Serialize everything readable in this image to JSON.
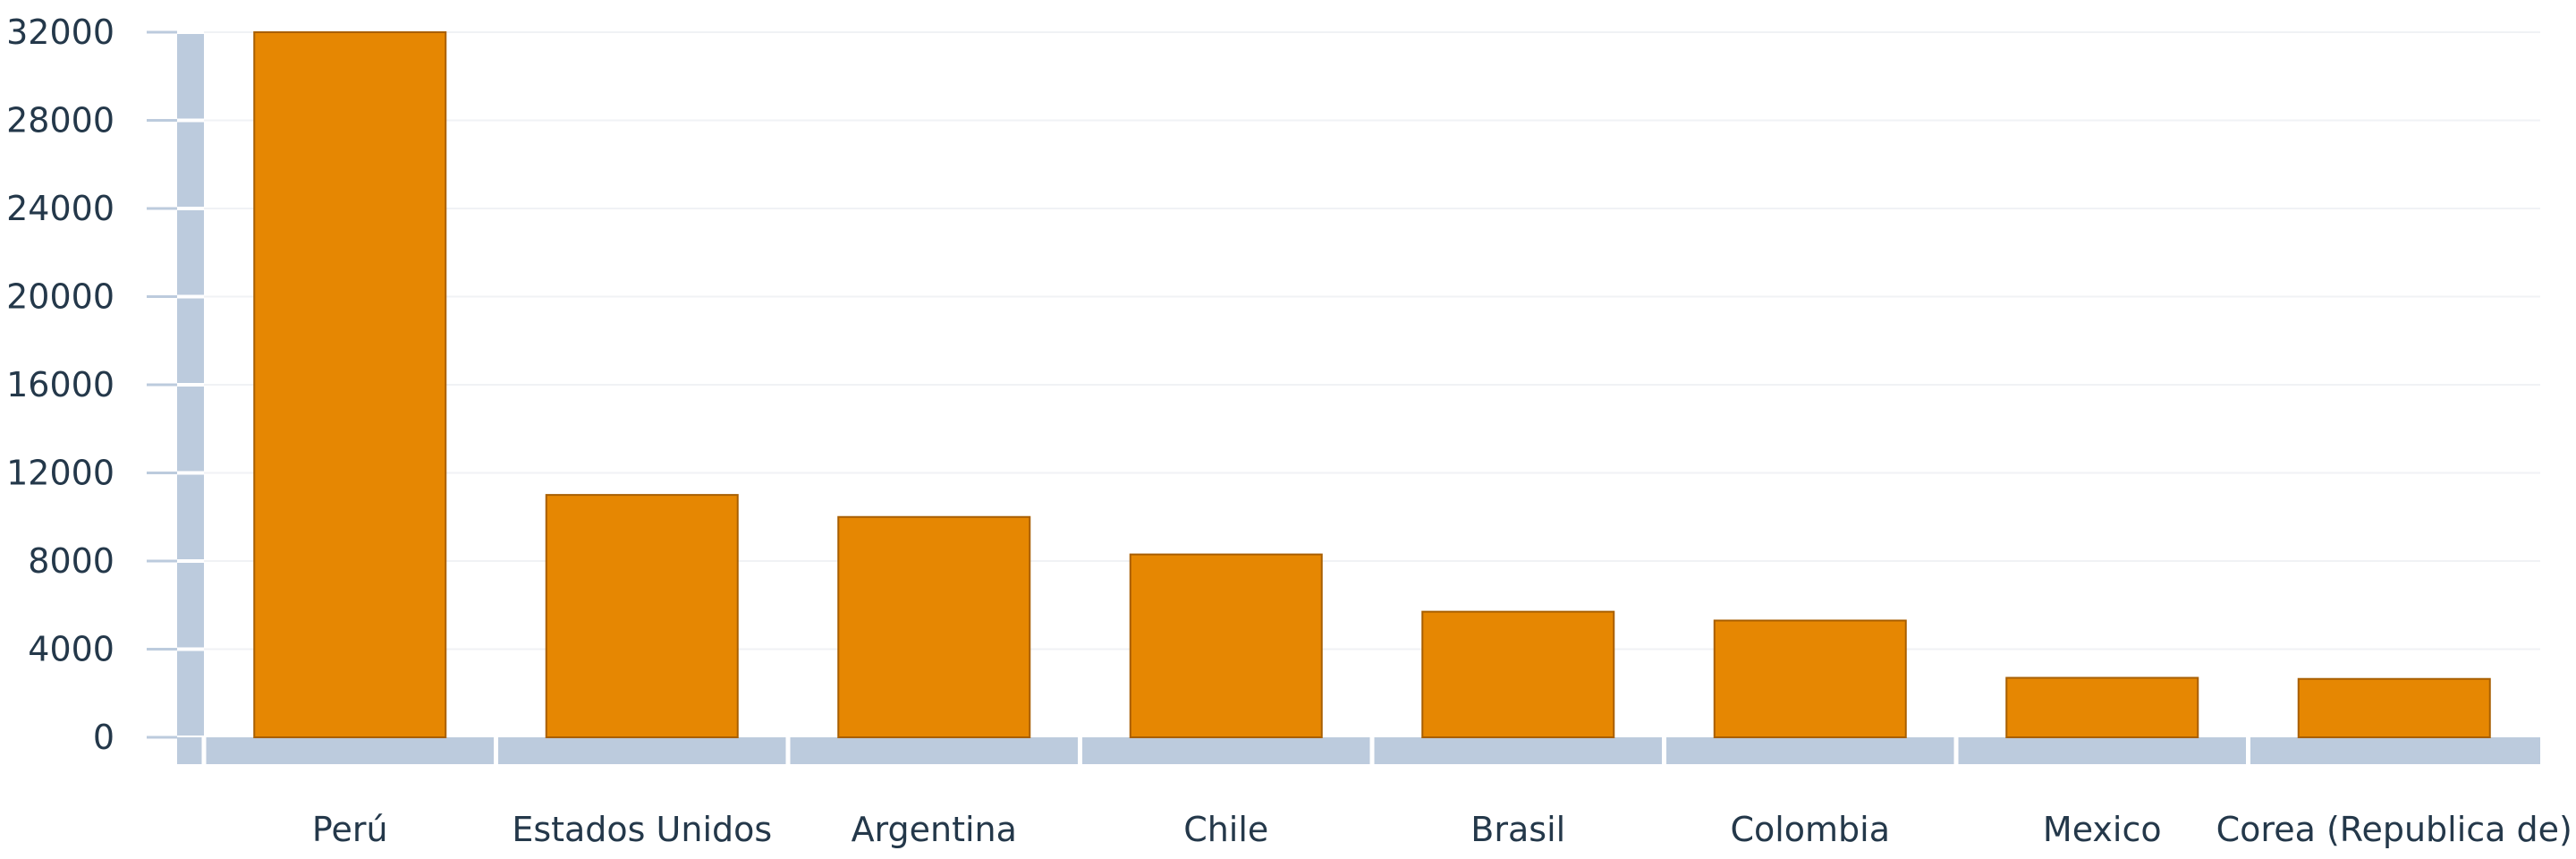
{
  "chart_data": {
    "type": "bar",
    "title": "",
    "xlabel": "",
    "ylabel": "",
    "categories": [
      "Perú",
      "Estados Unidos",
      "Argentina",
      "Chile",
      "Brasil",
      "Colombia",
      "Mexico",
      "Corea (Republica de)"
    ],
    "values": [
      32000,
      11000,
      10000,
      8300,
      5700,
      5300,
      2700,
      2650
    ],
    "ylim": [
      0,
      32000
    ],
    "yticks": [
      0,
      4000,
      8000,
      12000,
      16000,
      20000,
      24000,
      28000,
      32000
    ],
    "ytick_labels": [
      "0",
      "4000",
      "8000",
      "12000",
      "16000",
      "20000",
      "24000",
      "28000",
      "32000"
    ],
    "grid": true,
    "legend": "none",
    "colors": {
      "bar": "#e68702",
      "bar_edge": "#a85f00",
      "axis_band": "#bccbdd",
      "grid": "#f0f2f5",
      "text": "#24384a"
    }
  }
}
